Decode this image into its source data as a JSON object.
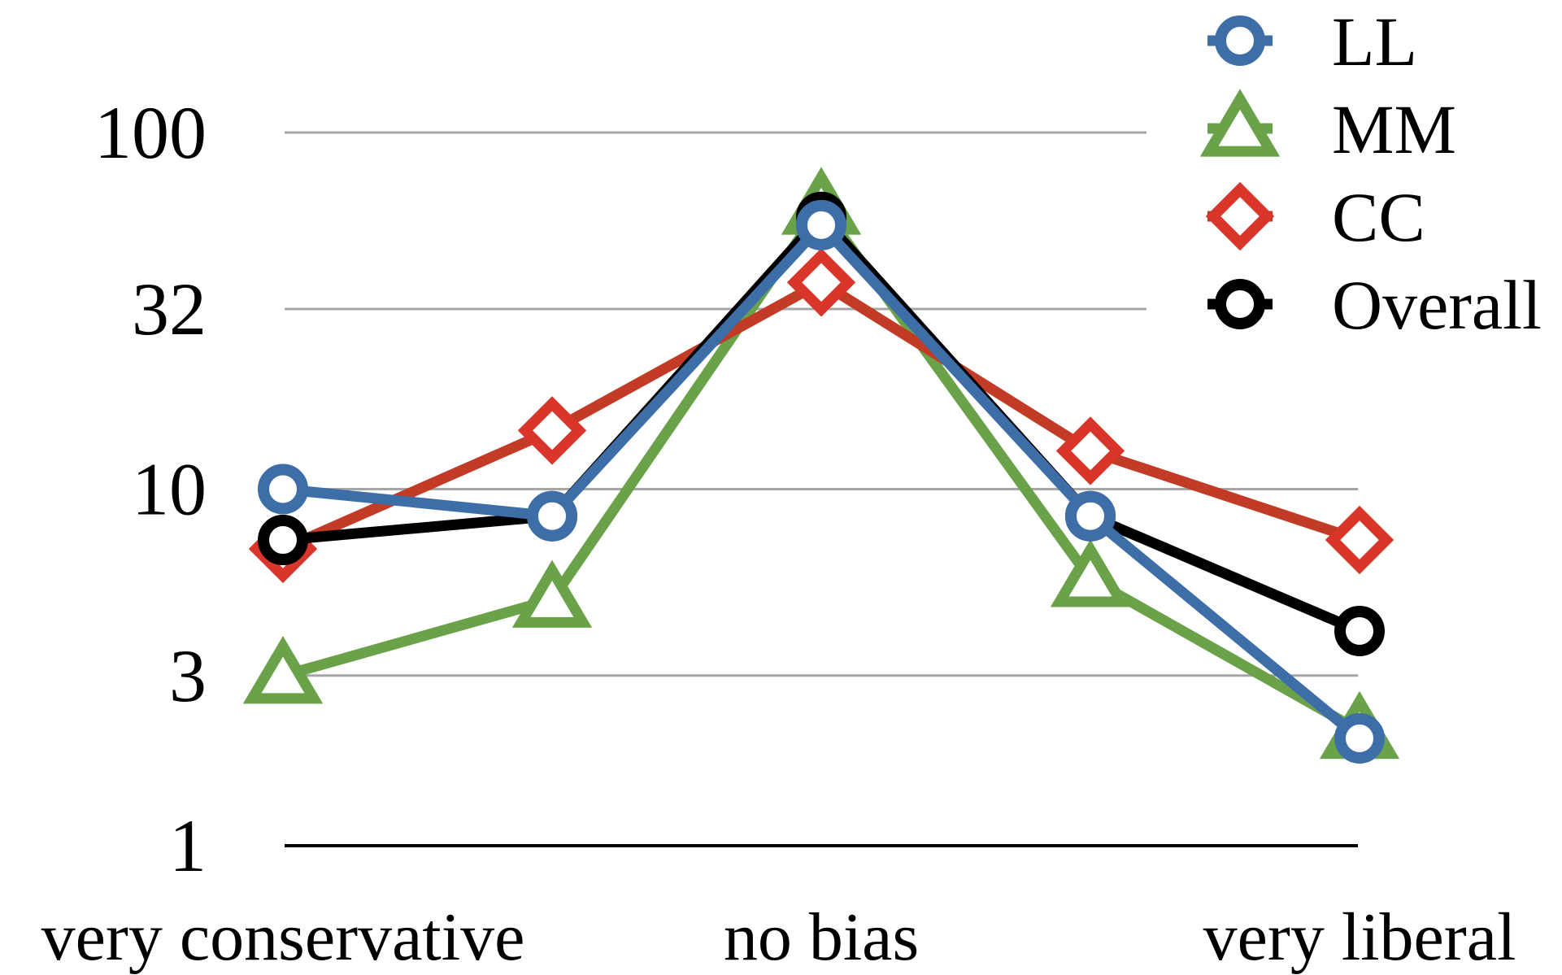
{
  "chart_data": {
    "type": "line",
    "categories": [
      "very conservative",
      "",
      "no bias",
      "",
      "very liberal"
    ],
    "x_tick_labels": [
      "very conservative",
      "no bias",
      "very liberal"
    ],
    "y_scale": "log",
    "ylim": [
      1,
      100
    ],
    "y_ticks": [
      1,
      3,
      10,
      32,
      100
    ],
    "y_tick_labels": [
      "1",
      "3",
      "10",
      "32",
      "100"
    ],
    "grid": true,
    "legend_position": "top-right",
    "title": "",
    "xlabel": "",
    "ylabel": "",
    "series": [
      {
        "name": "LL",
        "color": "#3e6ea8",
        "marker": "circle",
        "values": [
          10,
          8.4,
          55,
          8.4,
          2.0
        ]
      },
      {
        "name": "MM",
        "color": "#6aa24a",
        "marker": "triangle",
        "values": [
          3.0,
          4.9,
          62,
          5.6,
          2.1
        ]
      },
      {
        "name": "CC",
        "color": "#d9352a",
        "line_color": "#c23b26",
        "marker": "diamond",
        "values": [
          6.8,
          14.6,
          38,
          12.8,
          7.2
        ]
      },
      {
        "name": "Overall",
        "color": "#000000",
        "marker": "circle",
        "values": [
          7.2,
          8.4,
          58,
          8.4,
          4.0
        ]
      }
    ]
  }
}
